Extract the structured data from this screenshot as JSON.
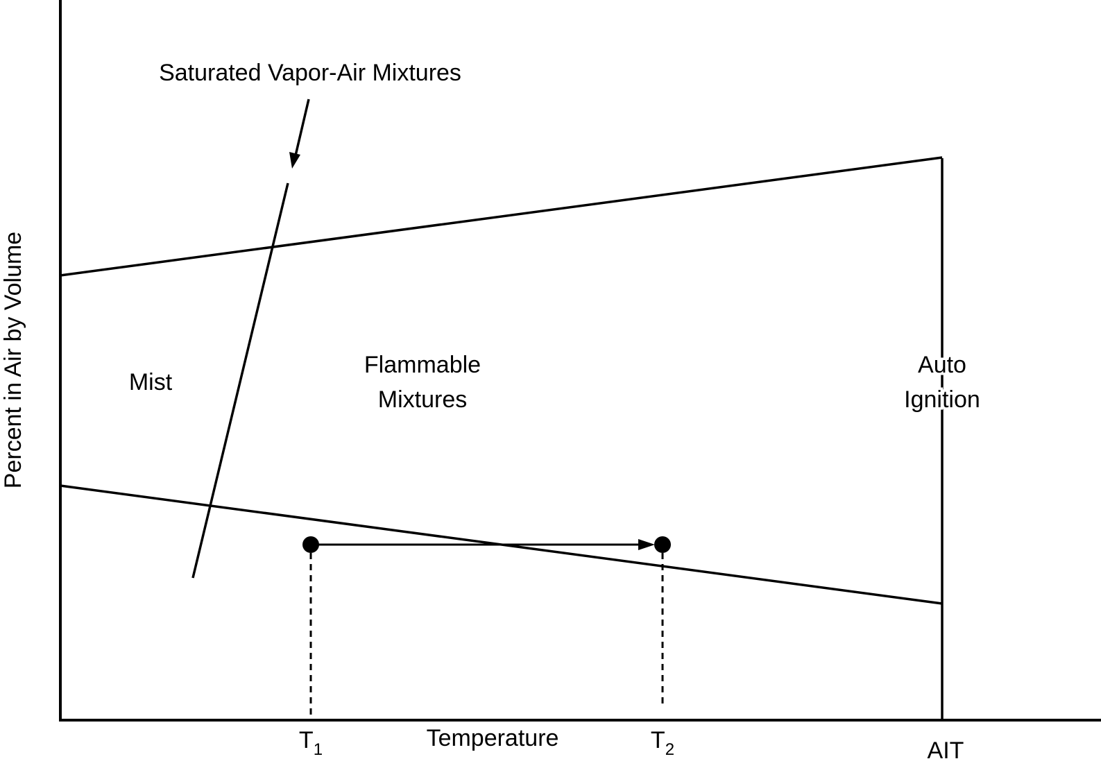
{
  "labels": {
    "y_axis": "Percent in Air by Volume",
    "x_axis": "Temperature",
    "saturated_curve": "Saturated Vapor-Air Mixtures",
    "mist_region": "Mist",
    "flammable_region": [
      "Flammable",
      "Mixtures"
    ],
    "auto_ignition_region": [
      "Auto",
      "Ignition"
    ],
    "tick_t1": {
      "main": "T",
      "sub": "1"
    },
    "tick_t2": {
      "main": "T",
      "sub": "2"
    },
    "tick_ait": "AIT"
  },
  "colors": {
    "line": "#000000",
    "background": "#ffffff"
  }
}
